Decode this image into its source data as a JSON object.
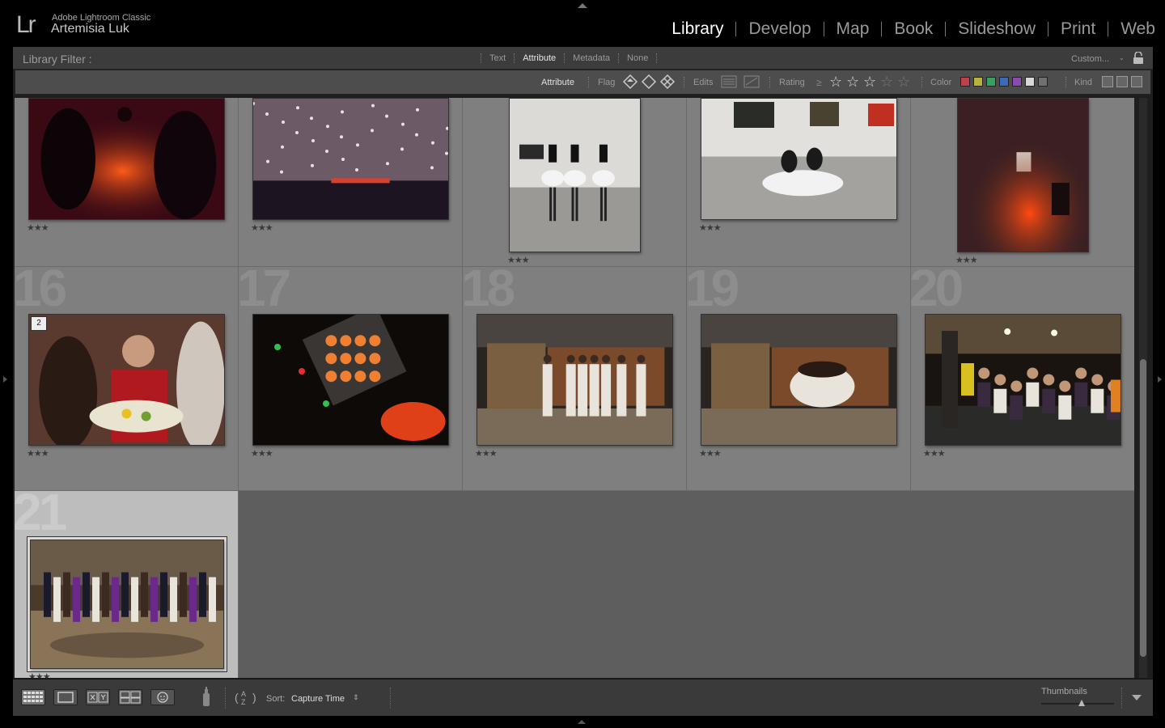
{
  "identity": {
    "logo": "Lr",
    "app_name": "Adobe Lightroom Classic",
    "user_name": "Artemisia Luk"
  },
  "modules": [
    {
      "label": "Library",
      "active": true
    },
    {
      "label": "Develop",
      "active": false
    },
    {
      "label": "Map",
      "active": false
    },
    {
      "label": "Book",
      "active": false
    },
    {
      "label": "Slideshow",
      "active": false
    },
    {
      "label": "Print",
      "active": false
    },
    {
      "label": "Web",
      "active": false
    }
  ],
  "library_filter": {
    "label": "Library Filter :",
    "tabs": [
      {
        "label": "Text",
        "active": false
      },
      {
        "label": "Attribute",
        "active": true
      },
      {
        "label": "Metadata",
        "active": false
      },
      {
        "label": "None",
        "active": false
      }
    ],
    "preset": "Custom...",
    "lock_icon": "lock-icon"
  },
  "attribute_bar": {
    "title": "Attribute",
    "flag_label": "Flag",
    "edits_label": "Edits",
    "rating_label": "Rating",
    "rating_operator": "≥",
    "rating_stars": 3,
    "rating_max": 5,
    "color_label": "Color",
    "kind_label": "Kind",
    "colors": [
      "#c0404a",
      "#b8b43a",
      "#3aa060",
      "#3a6ab8",
      "#8a4ab0",
      "#d8d8d8",
      "#707070"
    ]
  },
  "grid": {
    "rows": [
      [
        {
          "num": "",
          "stars": "★★★",
          "scene": "fortune"
        },
        {
          "num": "",
          "stars": "★★★",
          "scene": "party-stars"
        },
        {
          "num": "",
          "stars": "★★★",
          "scene": "dancers-standing"
        },
        {
          "num": "",
          "stars": "★★★",
          "scene": "dancers-sitting"
        },
        {
          "num": "",
          "stars": "★★★",
          "scene": "red-room"
        }
      ],
      [
        {
          "num": "16",
          "stars": "★★★",
          "scene": "girl-platter",
          "badge": "2"
        },
        {
          "num": "17",
          "stars": "★★★",
          "scene": "cupcakes"
        },
        {
          "num": "18",
          "stars": "★★★",
          "scene": "line-performers"
        },
        {
          "num": "19",
          "stars": "★★★",
          "scene": "huddle"
        },
        {
          "num": "20",
          "stars": "★★★",
          "scene": "crowd-night"
        }
      ],
      [
        {
          "num": "21",
          "stars": "★★★",
          "scene": "circle-crowd",
          "selected": true
        }
      ]
    ]
  },
  "toolbar": {
    "sort_label": "Sort:",
    "sort_value": "Capture Time",
    "thumbnails_label": "Thumbnails",
    "thumbnail_size": 0.55
  }
}
